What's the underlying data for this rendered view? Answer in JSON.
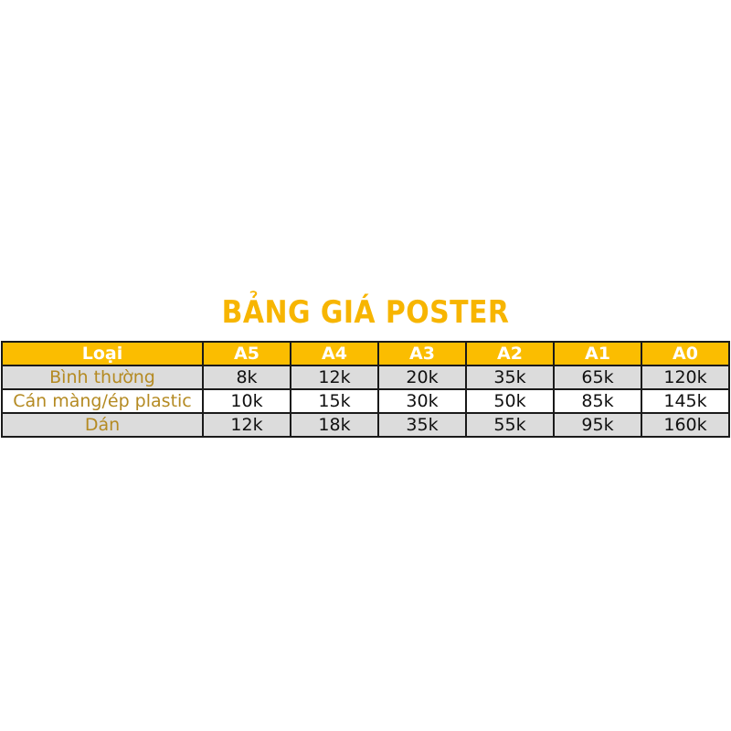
{
  "title": "BẢNG GIÁ POSTER",
  "colors": {
    "title": "#f7b500",
    "header_bg": "#fbbd00",
    "label_text": "#b48a22",
    "row_gray": "#dcdcdc"
  },
  "table": {
    "headers": [
      "Loại",
      "A5",
      "A4",
      "A3",
      "A2",
      "A1",
      "A0"
    ],
    "rows": [
      {
        "label": "Bình thường",
        "values": [
          "8k",
          "12k",
          "20k",
          "35k",
          "65k",
          "120k"
        ]
      },
      {
        "label": "Cán màng/ép plastic",
        "values": [
          "10k",
          "15k",
          "30k",
          "50k",
          "85k",
          "145k"
        ]
      },
      {
        "label": "Dán",
        "values": [
          "12k",
          "18k",
          "35k",
          "55k",
          "95k",
          "160k"
        ]
      }
    ]
  }
}
